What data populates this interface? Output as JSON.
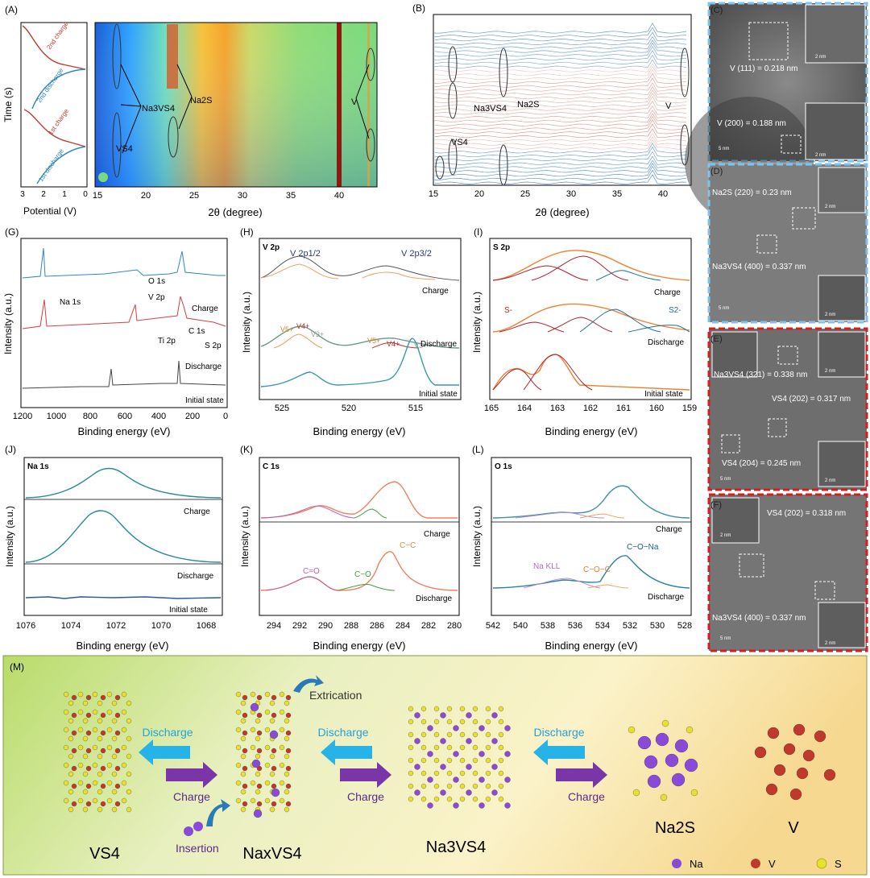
{
  "panels": {
    "A": {
      "letter": "(A)",
      "ylabel": "Time (s)",
      "left_xlabel": "Potential (V)",
      "left_ticks": [
        "3",
        "2",
        "1",
        "0"
      ],
      "curve_labels": [
        "2nd charge",
        "2nd discharge",
        "1st charge",
        "1st discharge"
      ],
      "xlabel": "2θ (degree)",
      "xticks": [
        "15",
        "20",
        "25",
        "30",
        "35",
        "40"
      ],
      "annotations": [
        "Na3VS4",
        "Na2S",
        "VS4",
        "V"
      ]
    },
    "B": {
      "letter": "(B)",
      "xlabel": "2θ (degree)",
      "xticks": [
        "15",
        "20",
        "25",
        "30",
        "35",
        "40"
      ],
      "annotations": [
        "Na3VS4",
        "Na2S",
        "VS4",
        "V"
      ]
    },
    "C": {
      "letter": "(C)",
      "labels": [
        "V (111) = 0.218 nm",
        "V (200) = 0.188 nm"
      ],
      "scalebars": [
        "5 nm",
        "2 nm",
        "2 nm"
      ]
    },
    "D": {
      "letter": "(D)",
      "labels": [
        "Na2S (220) = 0.23 nm",
        "Na3VS4 (400) = 0.337 nm"
      ],
      "scalebars": [
        "5 nm",
        "2 nm",
        "2 nm"
      ]
    },
    "E": {
      "letter": "(E)",
      "labels": [
        "Na3VS4 (321) = 0.338 nm",
        "VS4 (202) = 0.317 nm",
        "VS4 (204) = 0.245 nm"
      ],
      "scalebars": [
        "5 nm",
        "2 nm",
        "2 nm"
      ]
    },
    "F": {
      "letter": "(F)",
      "labels": [
        "VS4 (202) = 0.318 nm",
        "Na3VS4 (400) = 0.337 nm"
      ],
      "scalebars": [
        "5 nm",
        "2 nm",
        "2 nm"
      ]
    },
    "G": {
      "letter": "(G)",
      "ylabel": "Intensity (a.u.)",
      "xlabel": "Binding energy (eV)",
      "xticks": [
        "1200",
        "1000",
        "800",
        "600",
        "400",
        "200",
        "0"
      ],
      "traces": [
        "Charge",
        "Discharge",
        "Initial state"
      ],
      "peaks": [
        "Na 1s",
        "O 1s",
        "V 2p",
        "Ti 2p",
        "C 1s",
        "S 2p"
      ]
    },
    "H": {
      "letter": "(H)",
      "title": "V 2p",
      "ylabel": "Intensity (a.u.)",
      "xlabel": "Binding energy (eV)",
      "xticks": [
        "525",
        "520",
        "515"
      ],
      "traces": [
        "Charge",
        "Discharge",
        "Initial state"
      ],
      "peaks": [
        "V 2p1/2",
        "V 2p3/2",
        "V5+",
        "V4+",
        "V3+",
        "V5+",
        "V4+",
        "V3+"
      ]
    },
    "I": {
      "letter": "(I)",
      "title": "S 2p",
      "ylabel": "Intensity (a.u.)",
      "xlabel": "Binding energy (eV)",
      "xticks": [
        "165",
        "164",
        "163",
        "162",
        "161",
        "160",
        "159"
      ],
      "traces": [
        "Charge",
        "Discharge",
        "Initial state"
      ],
      "peaks": [
        "S-",
        "S2-"
      ]
    },
    "J": {
      "letter": "(J)",
      "title": "Na 1s",
      "ylabel": "Intensity (a.u.)",
      "xlabel": "Binding energy (eV)",
      "xticks": [
        "1076",
        "1074",
        "1072",
        "1070",
        "1068"
      ],
      "traces": [
        "Charge",
        "Discharge",
        "Initial state"
      ]
    },
    "K": {
      "letter": "(K)",
      "title": "C 1s",
      "ylabel": "Intensity (a.u.)",
      "xlabel": "Binding energy (eV)",
      "xticks": [
        "294",
        "292",
        "290",
        "288",
        "286",
        "284",
        "282",
        "280"
      ],
      "traces": [
        "Charge",
        "Discharge"
      ],
      "peaks": [
        "C=O",
        "C−O",
        "C−C"
      ]
    },
    "L": {
      "letter": "(L)",
      "title": "O 1s",
      "ylabel": "Intensity (a.u.)",
      "xlabel": "Binding energy (eV)",
      "xticks": [
        "542",
        "540",
        "538",
        "536",
        "534",
        "532",
        "530",
        "528"
      ],
      "traces": [
        "Charge",
        "Discharge"
      ],
      "peaks": [
        "Na KLL",
        "C−O−C",
        "C−O−Na"
      ]
    },
    "M": {
      "letter": "(M)",
      "phases": [
        "VS4",
        "NaxVS4",
        "Na3VS4",
        "Na2S",
        "V"
      ],
      "arrows": [
        "Discharge",
        "Charge",
        "Discharge",
        "Charge",
        "Discharge",
        "Charge"
      ],
      "extras": [
        "Extrication",
        "Insertion"
      ],
      "legend": [
        "Na",
        "V",
        "S"
      ]
    }
  },
  "colors": {
    "charge_red": "#c0392b",
    "discharge_blue": "#2e86c1",
    "na_purple": "#7d3cc8",
    "v_red": "#c0392b",
    "s_yellow": "#e8e030",
    "arrow_cyan": "#27b3e8",
    "arrow_purple": "#7a35a8"
  }
}
